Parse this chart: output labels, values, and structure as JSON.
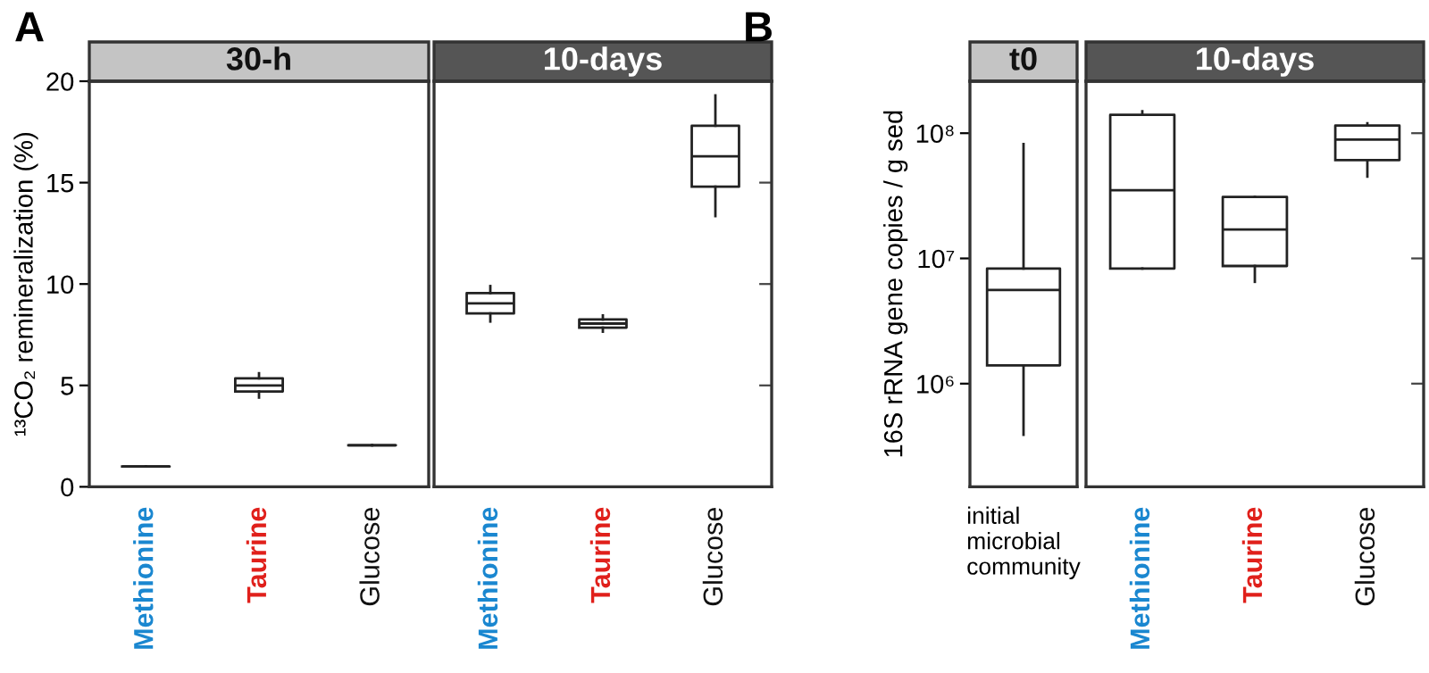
{
  "chart_data": [
    {
      "type": "box",
      "title": "30-h",
      "ylabel": "¹³CO₂ remineralization (%)",
      "annotations": [
        "A"
      ],
      "categories": [
        "Methionine",
        "Taurine",
        "Glucose"
      ],
      "ylim": [
        0,
        20
      ],
      "yticks": [
        0,
        5,
        10,
        15,
        20
      ],
      "grid": false,
      "boxes": [
        {
          "low": 1.0,
          "q1": 1.0,
          "median": 1.0,
          "q3": 1.0,
          "high": 1.0
        },
        {
          "low": 4.4,
          "q1": 4.7,
          "median": 5.0,
          "q3": 5.35,
          "high": 5.6
        },
        {
          "low": 2.05,
          "q1": 2.05,
          "median": 2.05,
          "q3": 2.05,
          "high": 2.05
        }
      ]
    },
    {
      "type": "box",
      "title": "10-days",
      "categories": [
        "Methionine",
        "Taurine",
        "Glucose"
      ],
      "ylim": [
        0,
        20
      ],
      "yticks": [
        0,
        5,
        10,
        15,
        20
      ],
      "tick_labels": "x",
      "grid": false,
      "boxes": [
        {
          "low": 8.15,
          "q1": 8.55,
          "median": 9.05,
          "q3": 9.55,
          "high": 9.9
        },
        {
          "low": 7.65,
          "q1": 7.85,
          "median": 8.05,
          "q3": 8.25,
          "high": 8.45
        },
        {
          "low": 13.35,
          "q1": 14.8,
          "median": 16.3,
          "q3": 17.8,
          "high": 19.3
        }
      ]
    },
    {
      "type": "box",
      "title": "t0",
      "ylabel": "16S rRNA gene copies / g sed",
      "annotations": [
        "B"
      ],
      "categories": [
        "initial\nmicrobial\ncommunity"
      ],
      "log": true,
      "ylim": [
        150000,
        260000000
      ],
      "yticks": [
        {
          "value": 1000000,
          "label": "10⁶"
        },
        {
          "value": 10000000,
          "label": "10⁷"
        },
        {
          "value": 100000000,
          "label": "10⁸"
        }
      ],
      "grid": false,
      "boxes": [
        {
          "low": 390000,
          "q1": 1400000,
          "median": 5600000,
          "q3": 8300000,
          "high": 82000000
        }
      ]
    },
    {
      "type": "box",
      "title": "10-days",
      "categories": [
        "Methionine",
        "Taurine",
        "Glucose"
      ],
      "log": true,
      "ylim": [
        150000,
        260000000
      ],
      "yticks": [
        {
          "value": 1000000,
          "label": null
        },
        {
          "value": 10000000,
          "label": null
        },
        {
          "value": 100000000,
          "label": null
        }
      ],
      "tick_labels": "x",
      "grid": false,
      "boxes": [
        {
          "low": 8300000,
          "q1": 8300000,
          "median": 35000000,
          "q3": 140000000,
          "high": 150000000
        },
        {
          "low": 6500000,
          "q1": 8700000,
          "median": 17000000,
          "q3": 31000000,
          "high": 31000000
        },
        {
          "low": 45000000,
          "q1": 61000000,
          "median": 89000000,
          "q3": 115000000,
          "high": 120000000
        }
      ]
    }
  ]
}
